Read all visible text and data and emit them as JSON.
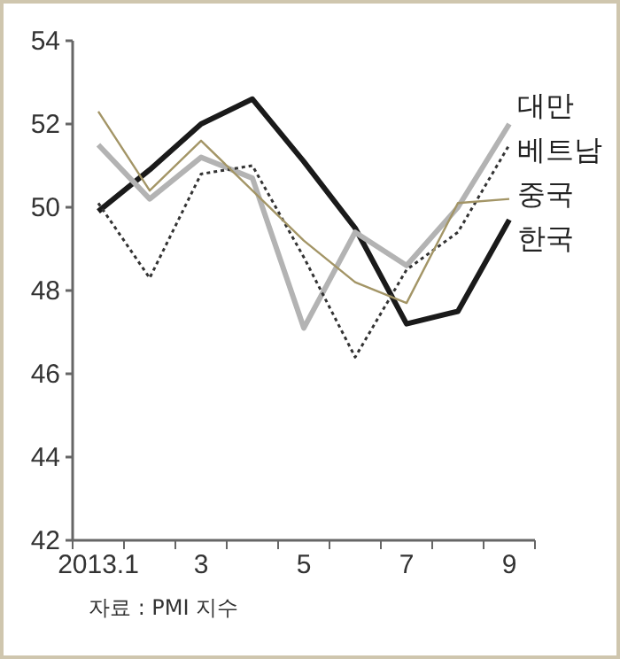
{
  "chart_data": {
    "type": "line",
    "categories": [
      "2013.1",
      null,
      "3",
      null,
      "5",
      null,
      "7",
      null,
      "9"
    ],
    "series": [
      {
        "name": "한국",
        "color": "#1a1a1a",
        "line_style": "solid",
        "values": [
          49.9,
          50.9,
          52.0,
          52.6,
          51.1,
          49.5,
          47.2,
          47.5,
          49.7
        ]
      },
      {
        "name": "대만",
        "color": "#b3b3b3",
        "line_style": "solid",
        "values": [
          51.5,
          50.2,
          51.2,
          50.7,
          47.1,
          49.4,
          48.6,
          50.0,
          52.0
        ]
      },
      {
        "name": "베트남",
        "color": "#333333",
        "line_style": "dotted",
        "values": [
          50.1,
          48.3,
          50.8,
          51.0,
          48.8,
          46.4,
          48.5,
          49.4,
          51.5
        ]
      },
      {
        "name": "중국",
        "color": "#a39566",
        "line_style": "solid",
        "values": [
          52.3,
          50.4,
          51.6,
          50.4,
          49.2,
          48.2,
          47.7,
          50.1,
          50.2
        ]
      }
    ],
    "ylim": [
      42,
      54
    ],
    "yticks": [
      42,
      44,
      46,
      48,
      50,
      52,
      54
    ],
    "grid": false,
    "marker": "none",
    "annotations": [
      "자료 : PMI 지수"
    ]
  }
}
